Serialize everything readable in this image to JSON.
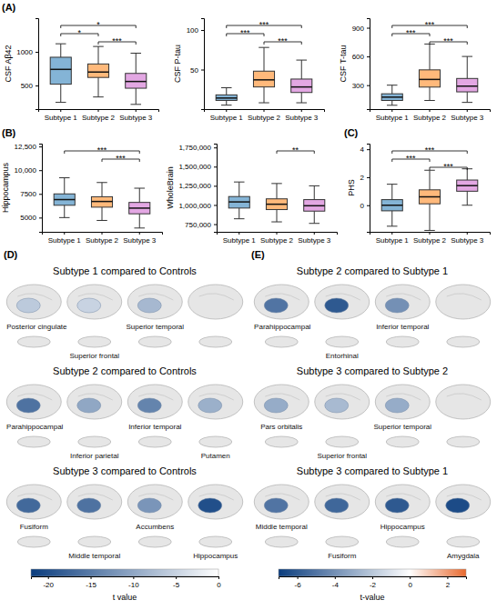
{
  "chart_data": [
    {
      "type": "box",
      "panel_label": "(A)",
      "y_label": "CSF Aβ42",
      "categories": [
        "Subtype 1",
        "Subtype 2",
        "Subtype 3"
      ],
      "colors": [
        "#1f77b4",
        "#ff7f0e",
        "#cc5fcc"
      ],
      "boxes": [
        {
          "whislo": 250,
          "q1": 520,
          "med": 740,
          "q3": 920,
          "whishi": 1120
        },
        {
          "whislo": 330,
          "q1": 620,
          "med": 700,
          "q3": 820,
          "whishi": 1080
        },
        {
          "whislo": 220,
          "q1": 460,
          "med": 560,
          "q3": 680,
          "whishi": 980
        }
      ],
      "ylim": [
        150,
        1500
      ],
      "yticks": [
        500,
        1000
      ],
      "comparisons": [
        {
          "pair": [
            0,
            2
          ],
          "label": "*"
        },
        {
          "pair": [
            0,
            1
          ],
          "label": "*"
        },
        {
          "pair": [
            1,
            2
          ],
          "label": "***"
        }
      ]
    },
    {
      "type": "box",
      "y_label": "CSF P-tau",
      "categories": [
        "Subtype 1",
        "Subtype 2",
        "Subtype 3"
      ],
      "colors": [
        "#1f77b4",
        "#ff7f0e",
        "#cc5fcc"
      ],
      "boxes": [
        {
          "whislo": 5,
          "q1": 11,
          "med": 14,
          "q3": 18,
          "whishi": 27
        },
        {
          "whislo": 8,
          "q1": 28,
          "med": 37,
          "q3": 48,
          "whishi": 78
        },
        {
          "whislo": 8,
          "q1": 21,
          "med": 28,
          "q3": 38,
          "whishi": 62
        }
      ],
      "ylim": [
        0,
        115
      ],
      "yticks": [
        50,
        100
      ],
      "comparisons": [
        {
          "pair": [
            0,
            2
          ],
          "label": "***"
        },
        {
          "pair": [
            0,
            1
          ],
          "label": "***"
        },
        {
          "pair": [
            1,
            2
          ],
          "label": "***"
        }
      ]
    },
    {
      "type": "box",
      "y_label": "CSF T-tau",
      "categories": [
        "Subtype 1",
        "Subtype 2",
        "Subtype 3"
      ],
      "colors": [
        "#1f77b4",
        "#ff7f0e",
        "#cc5fcc"
      ],
      "boxes": [
        {
          "whislo": 90,
          "q1": 140,
          "med": 175,
          "q3": 210,
          "whishi": 300
        },
        {
          "whislo": 140,
          "q1": 280,
          "med": 360,
          "q3": 460,
          "whishi": 730
        },
        {
          "whislo": 120,
          "q1": 230,
          "med": 290,
          "q3": 370,
          "whishi": 600
        }
      ],
      "ylim": [
        50,
        1000
      ],
      "yticks": [
        300,
        600,
        900
      ],
      "comparisons": [
        {
          "pair": [
            0,
            2
          ],
          "label": "***"
        },
        {
          "pair": [
            0,
            1
          ],
          "label": "***"
        },
        {
          "pair": [
            1,
            2
          ],
          "label": "***"
        }
      ]
    },
    {
      "type": "box",
      "panel_label": "(B)",
      "y_label": "Hippocampus",
      "categories": [
        "Subtype 1",
        "Subtype 2",
        "Subtype 3"
      ],
      "colors": [
        "#1f77b4",
        "#ff7f0e",
        "#cc5fcc"
      ],
      "boxes": [
        {
          "whislo": 5000,
          "q1": 6300,
          "med": 6900,
          "q3": 7500,
          "whishi": 9200
        },
        {
          "whislo": 4700,
          "q1": 6100,
          "med": 6700,
          "q3": 7200,
          "whishi": 8700
        },
        {
          "whislo": 3900,
          "q1": 5400,
          "med": 6000,
          "q3": 6600,
          "whishi": 8100
        }
      ],
      "ylim": [
        3500,
        12800
      ],
      "yticks": [
        5000,
        7500,
        {
          "value": 10000,
          "label": "10,000"
        },
        {
          "value": 12500,
          "label": "12,500"
        }
      ],
      "comparisons": [
        {
          "pair": [
            0,
            2
          ],
          "label": "***"
        },
        {
          "pair": [
            1,
            2
          ],
          "label": "***"
        }
      ]
    },
    {
      "type": "box",
      "y_label": "WholeBrain",
      "categories": [
        "Subtype 1",
        "Subtype 2",
        "Subtype 3"
      ],
      "colors": [
        "#1f77b4",
        "#ff7f0e",
        "#cc5fcc"
      ],
      "boxes": [
        {
          "whislo": 820000,
          "q1": 960000,
          "med": 1040000,
          "q3": 1110000,
          "whishi": 1300000
        },
        {
          "whislo": 780000,
          "q1": 940000,
          "med": 1010000,
          "q3": 1080000,
          "whishi": 1280000
        },
        {
          "whislo": 760000,
          "q1": 920000,
          "med": 990000,
          "q3": 1070000,
          "whishi": 1250000
        }
      ],
      "ylim": [
        650000,
        1800000
      ],
      "yticks": [
        {
          "value": 750000,
          "label": "750,000"
        },
        {
          "value": 1000000,
          "label": "1,000,000"
        },
        {
          "value": 1250000,
          "label": "1,250,000"
        },
        {
          "value": 1500000,
          "label": "1,500,000"
        },
        {
          "value": 1750000,
          "label": "1,750,000"
        }
      ],
      "comparisons": [
        {
          "pair": [
            1,
            2
          ],
          "label": "**"
        }
      ]
    },
    {
      "type": "box",
      "panel_label": "(C)",
      "y_label": "PHS",
      "categories": [
        "Subtype 1",
        "Subtype 2",
        "Subtype 3"
      ],
      "colors": [
        "#1f77b4",
        "#ff7f0e",
        "#cc5fcc"
      ],
      "boxes": [
        {
          "whislo": -1.5,
          "q1": -0.4,
          "med": 0.0,
          "q3": 0.4,
          "whishi": 1.5
        },
        {
          "whislo": -1.8,
          "q1": 0.1,
          "med": 0.6,
          "q3": 1.1,
          "whishi": 2.5
        },
        {
          "whislo": 0.0,
          "q1": 1.0,
          "med": 1.4,
          "q3": 1.8,
          "whishi": 2.6
        }
      ],
      "ylim": [
        -1.9,
        4.4
      ],
      "yticks": [
        0,
        2,
        4
      ],
      "comparisons": [
        {
          "pair": [
            0,
            2
          ],
          "label": "***"
        },
        {
          "pair": [
            0,
            1
          ],
          "label": "***"
        },
        {
          "pair": [
            1,
            2
          ],
          "label": "***"
        }
      ]
    },
    {
      "type": "brain",
      "panel_label": "(D)",
      "rows": [
        {
          "title": "Subtype 1 compared to Controls",
          "regions": [
            {
              "name": "Posterior cingulate",
              "t": -6
            },
            {
              "name": "Superior frontal",
              "t": -5
            },
            {
              "name": "Superior temporal",
              "t": -8
            }
          ]
        },
        {
          "title": "Subtype 2 compared to Controls",
          "regions": [
            {
              "name": "Parahippocampal",
              "t": -16
            },
            {
              "name": "Inferior parietal",
              "t": -10
            },
            {
              "name": "Inferior temporal",
              "t": -14
            },
            {
              "name": "Putamen",
              "t": -9
            }
          ]
        },
        {
          "title": "Subtype 3 compared to Controls",
          "regions": [
            {
              "name": "Fusiform",
              "t": -17
            },
            {
              "name": "Middle temporal",
              "t": -16
            },
            {
              "name": "Accumbens",
              "t": -12
            },
            {
              "name": "Hippocampus",
              "t": -20
            }
          ]
        }
      ],
      "colorbar": {
        "label": "t value",
        "range": [
          -22,
          0
        ],
        "ticks": [
          -20,
          -15,
          -10,
          -5,
          0
        ]
      }
    },
    {
      "type": "brain",
      "panel_label": "(E)",
      "rows": [
        {
          "title": "Subtype 2 compared to Subtype 1",
          "regions": [
            {
              "name": "Parahippocampal",
              "t": -5
            },
            {
              "name": "Entorhinal",
              "t": -6
            },
            {
              "name": "Inferior temporal",
              "t": -4
            }
          ]
        },
        {
          "title": "Subtype 3 compared to Subtype 2",
          "regions": [
            {
              "name": "Pars orbitalis",
              "t": -3
            },
            {
              "name": "Superior frontal",
              "t": -2.5
            },
            {
              "name": "Superior temporal",
              "t": -3
            }
          ]
        },
        {
          "title": "Subtype 3 compared to Subtype 1",
          "regions": [
            {
              "name": "Middle temporal",
              "t": -5
            },
            {
              "name": "Fusiform",
              "t": -5.5
            },
            {
              "name": "Hippocampus",
              "t": -6
            },
            {
              "name": "Amygdala",
              "t": -6.5
            }
          ]
        }
      ],
      "colorbar": {
        "label": "t-value",
        "range": [
          -7,
          3
        ],
        "ticks": [
          -6,
          -4,
          -2,
          0,
          2
        ]
      }
    }
  ]
}
